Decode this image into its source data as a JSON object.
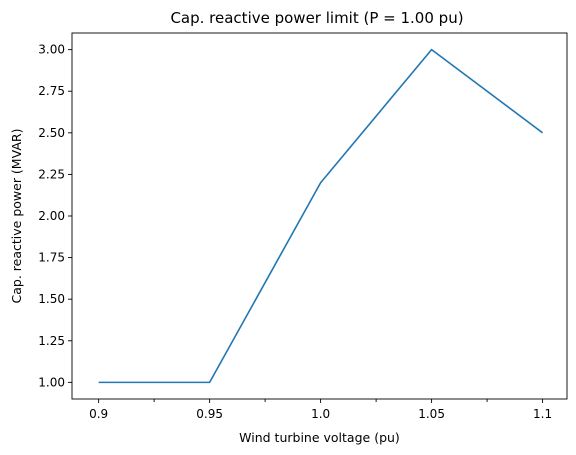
{
  "chart_data": {
    "type": "line",
    "title": "Cap. reactive power limit (P = 1.00 pu)",
    "xlabel": "Wind turbine voltage (pu)",
    "ylabel": "Cap. reactive power (MVAR)",
    "series": [
      {
        "x": [
          0.9,
          0.95,
          1.0,
          1.05,
          1.1
        ],
        "y": [
          1.0,
          1.0,
          2.2,
          3.0,
          2.5
        ],
        "color": "#1f77b4"
      }
    ],
    "xlim": [
      0.888,
      1.111
    ],
    "ylim": [
      0.9,
      3.1
    ],
    "x_ticks": [
      0.9,
      0.95,
      1.0,
      1.05,
      1.1
    ],
    "x_minor_ticks": [
      0.925,
      0.975,
      1.025,
      1.075
    ],
    "x_tick_labels": [
      "0.9",
      "0.95",
      "1.0",
      "1.05",
      "1.1"
    ],
    "y_ticks": [
      1.0,
      1.25,
      1.5,
      1.75,
      2.0,
      2.25,
      2.5,
      2.75,
      3.0
    ],
    "y_tick_labels": [
      "1.00",
      "1.25",
      "1.50",
      "1.75",
      "2.00",
      "2.25",
      "2.50",
      "2.75",
      "3.00"
    ],
    "grid": false,
    "legend": "none"
  }
}
